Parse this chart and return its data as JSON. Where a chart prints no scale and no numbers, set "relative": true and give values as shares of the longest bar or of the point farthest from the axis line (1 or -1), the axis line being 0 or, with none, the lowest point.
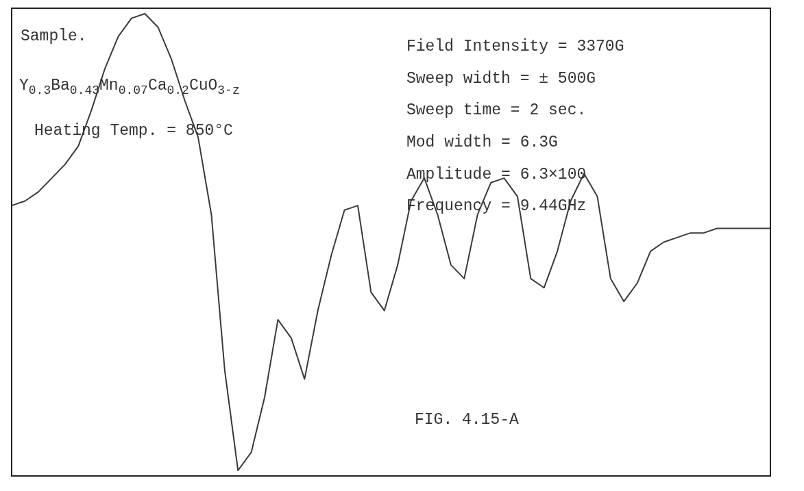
{
  "chart_data": {
    "type": "line",
    "relative": true,
    "tick_labels": false,
    "legend": false,
    "categories": [
      null,
      null,
      null,
      null,
      null,
      null,
      null,
      null,
      null,
      null,
      null,
      null,
      null,
      null,
      null,
      null,
      null,
      null,
      null,
      null,
      null,
      null,
      null,
      null,
      null,
      null,
      null,
      null,
      null,
      null,
      null,
      null,
      null,
      null,
      null,
      null,
      null,
      null,
      null,
      null,
      null,
      null,
      null,
      null,
      null,
      null,
      null,
      null,
      null,
      null,
      null,
      null,
      null,
      null,
      null,
      null,
      null,
      null
    ],
    "series": [
      {
        "color": "#3a3a3a",
        "values": [
          0.58,
          0.59,
          0.61,
          0.64,
          0.67,
          0.71,
          0.79,
          0.88,
          0.95,
          0.99,
          1.0,
          0.97,
          0.9,
          0.81,
          0.73,
          0.56,
          0.22,
          0,
          0.04,
          0.16,
          0.33,
          0.29,
          0.2,
          0.35,
          0.47,
          0.57,
          0.58,
          0.39,
          0.35,
          0.45,
          0.59,
          0.64,
          0.56,
          0.45,
          0.42,
          0.56,
          0.63,
          0.64,
          0.6,
          0.42,
          0.4,
          0.48,
          0.59,
          0.65,
          0.6,
          0.42,
          0.37,
          0.41,
          0.48,
          0.5,
          0.51,
          0.52,
          0.52,
          0.53,
          0.53,
          0.53,
          0.53,
          0.53
        ]
      }
    ],
    "annotations": [
      "Sample.",
      "Y$_{0.3}$Ba$_{0.43}$Mn$_{0.07}$Ca$_{0.2}$CuO$_{3-z}$",
      "Heating Temp. = 850°C",
      "Field Intensity = 3370G",
      "Sweep width = ± 500G",
      "Sweep time = 2 sec.",
      "Mod width = 6.3G",
      "Amplitude = 6.3×100",
      "Frequency = 9.44GHz",
      "FIG. 4.15-A"
    ]
  }
}
